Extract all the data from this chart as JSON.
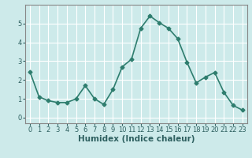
{
  "x": [
    0,
    1,
    2,
    3,
    4,
    5,
    6,
    7,
    8,
    9,
    10,
    11,
    12,
    13,
    14,
    15,
    16,
    17,
    18,
    19,
    20,
    21,
    22,
    23
  ],
  "y": [
    2.45,
    1.1,
    0.9,
    0.8,
    0.8,
    1.0,
    1.7,
    1.0,
    0.7,
    1.5,
    2.7,
    3.1,
    4.75,
    5.4,
    5.05,
    4.75,
    4.2,
    2.95,
    1.85,
    2.15,
    2.4,
    1.35,
    0.65,
    0.4
  ],
  "line_color": "#2e7d6e",
  "marker": "D",
  "marker_size": 2.5,
  "xlabel": "Humidex (Indice chaleur)",
  "xlim": [
    -0.5,
    23.5
  ],
  "ylim": [
    -0.3,
    6.0
  ],
  "yticks": [
    0,
    1,
    2,
    3,
    4,
    5
  ],
  "xticks": [
    0,
    1,
    2,
    3,
    4,
    5,
    6,
    7,
    8,
    9,
    10,
    11,
    12,
    13,
    14,
    15,
    16,
    17,
    18,
    19,
    20,
    21,
    22,
    23
  ],
  "bg_color": "#cdeaea",
  "grid_color": "#ffffff",
  "tick_fontsize": 6,
  "xlabel_fontsize": 7.5,
  "line_width": 1.2
}
